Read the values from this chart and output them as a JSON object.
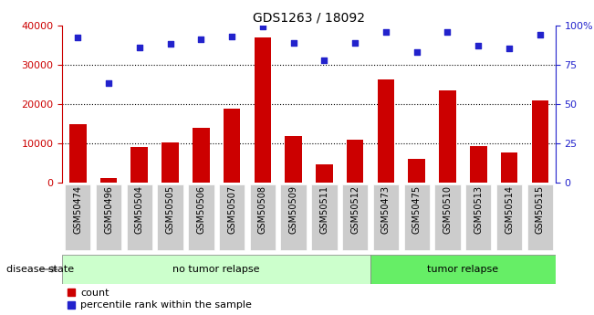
{
  "title": "GDS1263 / 18092",
  "categories": [
    "GSM50474",
    "GSM50496",
    "GSM50504",
    "GSM50505",
    "GSM50506",
    "GSM50507",
    "GSM50508",
    "GSM50509",
    "GSM50511",
    "GSM50512",
    "GSM50473",
    "GSM50475",
    "GSM50510",
    "GSM50513",
    "GSM50514",
    "GSM50515"
  ],
  "counts": [
    14800,
    1100,
    9000,
    10300,
    14000,
    18800,
    37000,
    11800,
    4700,
    10900,
    26200,
    6000,
    23500,
    9400,
    7700,
    21000
  ],
  "percentiles": [
    92,
    63,
    86,
    88,
    91,
    93,
    99,
    89,
    78,
    89,
    96,
    83,
    96,
    87,
    85,
    94
  ],
  "bar_color": "#cc0000",
  "dot_color": "#2222cc",
  "left_ylim": [
    0,
    40000
  ],
  "right_ylim": [
    0,
    100
  ],
  "left_yticks": [
    0,
    10000,
    20000,
    30000,
    40000
  ],
  "left_yticklabels": [
    "0",
    "10000",
    "20000",
    "30000",
    "40000"
  ],
  "right_yticks": [
    0,
    25,
    50,
    75,
    100
  ],
  "right_yticklabels": [
    "0",
    "25",
    "50",
    "75",
    "100%"
  ],
  "no_relapse_label": "no tumor relapse",
  "relapse_label": "tumor relapse",
  "no_relapse_count": 10,
  "relapse_count": 6,
  "disease_state_label": "disease state",
  "legend_count_label": "count",
  "legend_percentile_label": "percentile rank within the sample",
  "no_relapse_color": "#ccffcc",
  "relapse_color": "#66ee66",
  "tick_bg_color": "#cccccc",
  "left_axis_color": "#cc0000",
  "right_axis_color": "#2222cc",
  "fig_width": 6.51,
  "fig_height": 3.45,
  "dpi": 100
}
